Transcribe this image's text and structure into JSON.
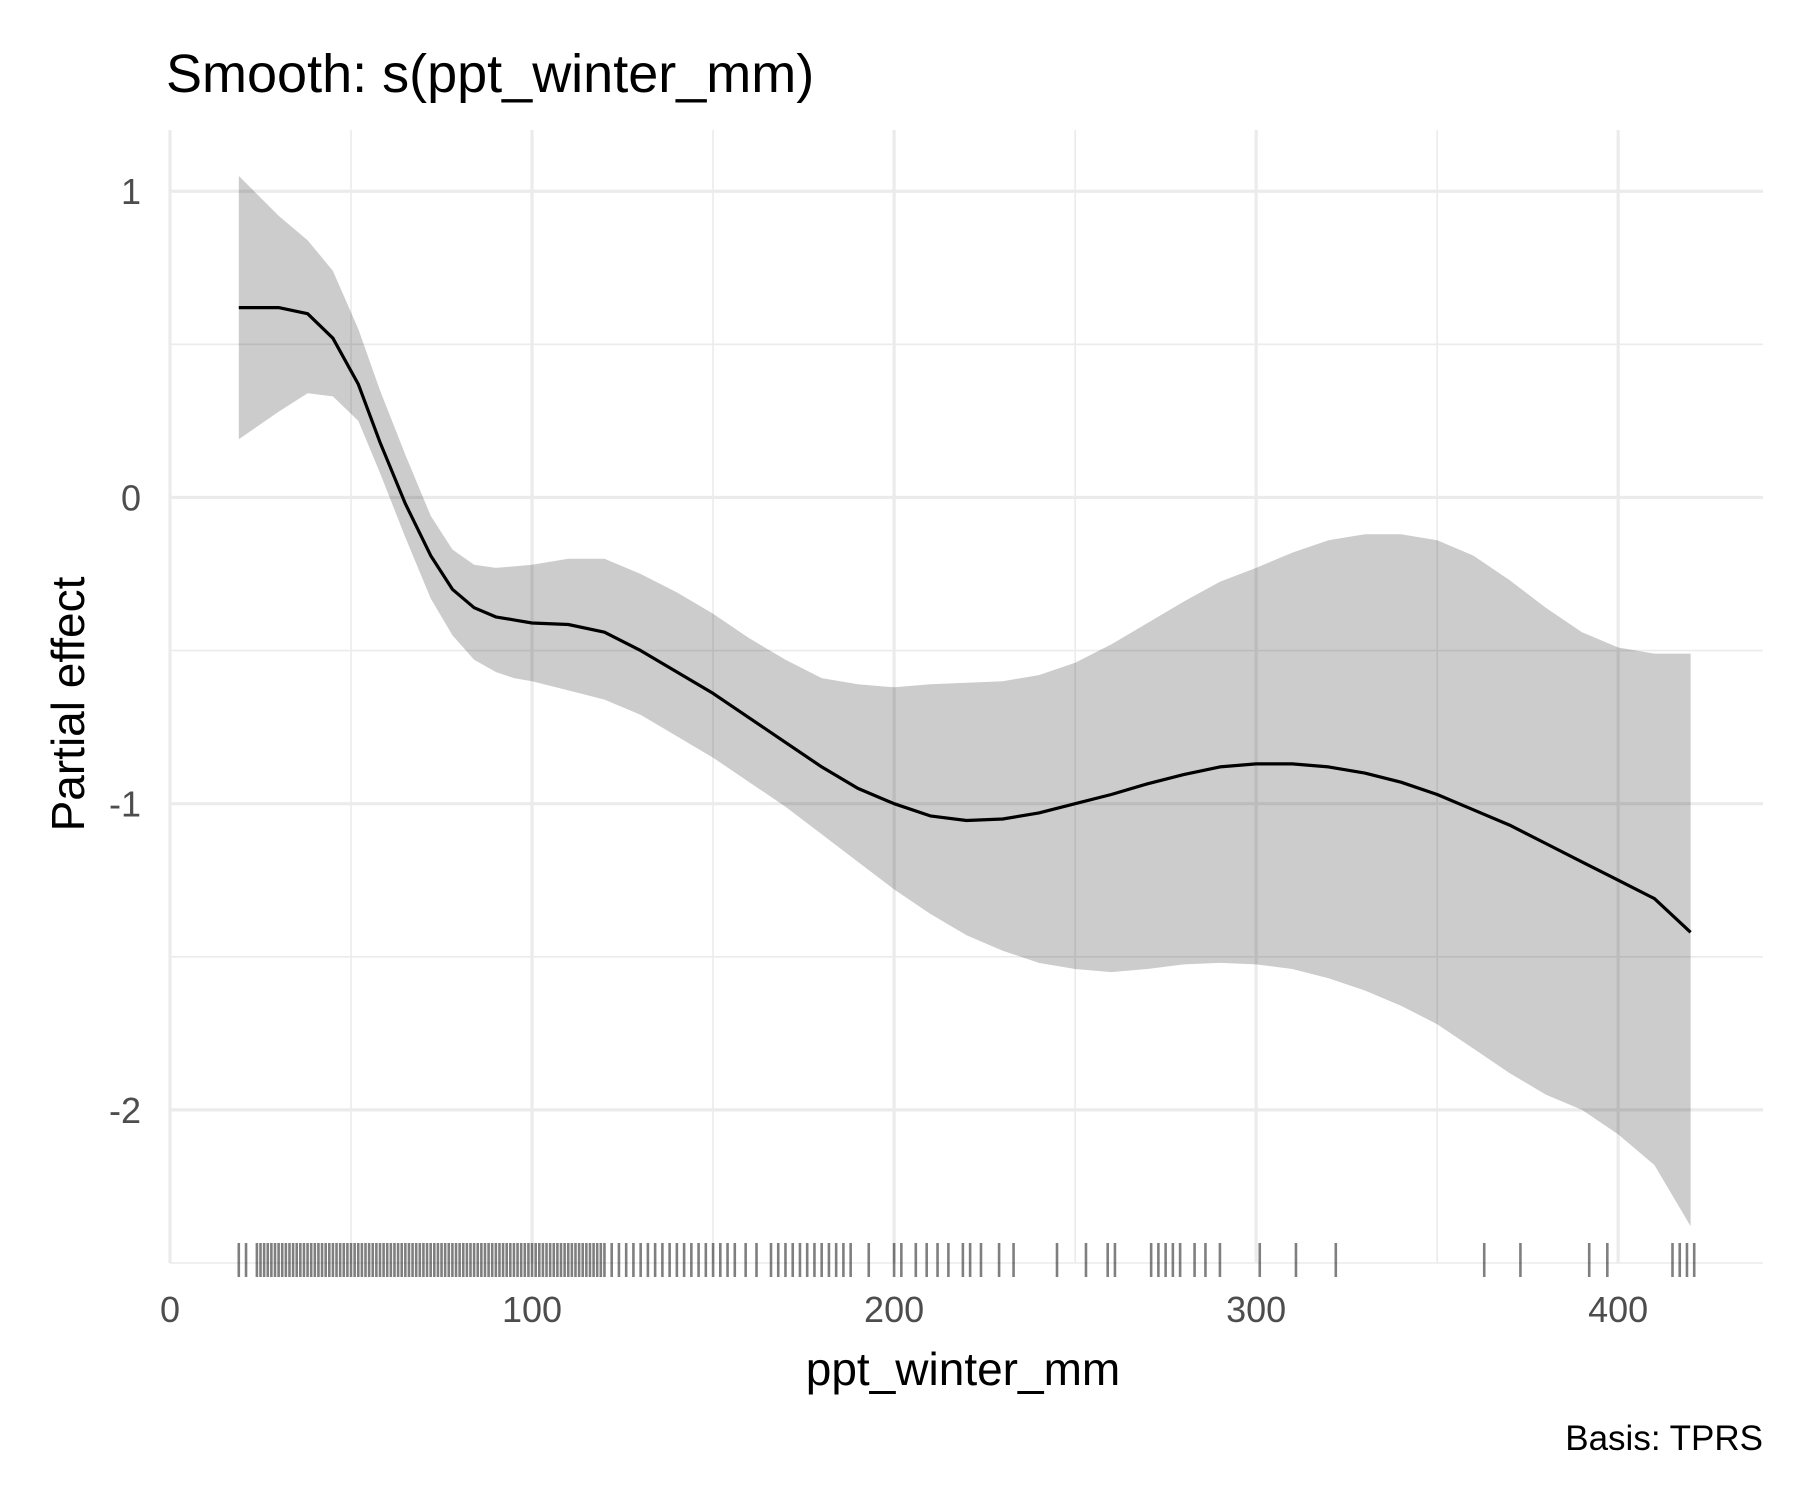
{
  "chart_data": {
    "type": "line",
    "title": "Smooth: s(ppt_winter_mm)",
    "xlabel": "ppt_winter_mm",
    "ylabel": "Partial effect",
    "caption": "Basis: TPRS",
    "xlim": [
      0,
      440
    ],
    "ylim": [
      -2.5,
      1.2
    ],
    "x_ticks": [
      0,
      100,
      200,
      300,
      400
    ],
    "x_tick_labels": [
      "0",
      "100",
      "200",
      "300",
      "400"
    ],
    "y_ticks": [
      -2,
      -1,
      0,
      1
    ],
    "y_tick_labels": [
      "-2",
      "-1",
      "0",
      "1"
    ],
    "grid": true,
    "series": [
      {
        "style": "line",
        "color": "#000000",
        "x": [
          19,
          30,
          38,
          45,
          52,
          58,
          65,
          72,
          78,
          84,
          90,
          95,
          100,
          110,
          120,
          130,
          140,
          150,
          160,
          170,
          180,
          190,
          200,
          210,
          220,
          230,
          240,
          250,
          260,
          270,
          280,
          290,
          300,
          310,
          320,
          330,
          340,
          350,
          360,
          370,
          380,
          390,
          400,
          410,
          420
        ],
        "fit": [
          0.62,
          0.62,
          0.6,
          0.52,
          0.37,
          0.18,
          -0.02,
          -0.19,
          -0.3,
          -0.36,
          -0.39,
          -0.4,
          -0.41,
          -0.415,
          -0.44,
          -0.5,
          -0.57,
          -0.64,
          -0.72,
          -0.8,
          -0.88,
          -0.95,
          -1.0,
          -1.04,
          -1.055,
          -1.05,
          -1.03,
          -1.0,
          -0.97,
          -0.935,
          -0.905,
          -0.88,
          -0.87,
          -0.87,
          -0.88,
          -0.9,
          -0.93,
          -0.97,
          -1.02,
          -1.07,
          -1.13,
          -1.19,
          -1.25,
          -1.31,
          -1.42
        ],
        "lower": [
          0.19,
          0.28,
          0.34,
          0.33,
          0.25,
          0.08,
          -0.13,
          -0.33,
          -0.45,
          -0.53,
          -0.57,
          -0.59,
          -0.6,
          -0.63,
          -0.66,
          -0.71,
          -0.78,
          -0.85,
          -0.93,
          -1.01,
          -1.1,
          -1.19,
          -1.28,
          -1.36,
          -1.43,
          -1.48,
          -1.52,
          -1.54,
          -1.55,
          -1.54,
          -1.525,
          -1.52,
          -1.525,
          -1.54,
          -1.57,
          -1.61,
          -1.66,
          -1.72,
          -1.8,
          -1.88,
          -1.95,
          -2.0,
          -2.08,
          -2.18,
          -2.38
        ],
        "upper": [
          1.05,
          0.92,
          0.84,
          0.74,
          0.55,
          0.35,
          0.14,
          -0.06,
          -0.17,
          -0.22,
          -0.23,
          -0.225,
          -0.22,
          -0.2,
          -0.2,
          -0.25,
          -0.31,
          -0.38,
          -0.46,
          -0.53,
          -0.59,
          -0.61,
          -0.62,
          -0.61,
          -0.605,
          -0.6,
          -0.58,
          -0.54,
          -0.48,
          -0.41,
          -0.34,
          -0.275,
          -0.23,
          -0.18,
          -0.14,
          -0.12,
          -0.12,
          -0.14,
          -0.19,
          -0.27,
          -0.36,
          -0.44,
          -0.49,
          -0.51,
          -0.51
        ]
      }
    ],
    "rug": {
      "color": "#000000",
      "values": [
        19,
        21,
        24,
        25,
        26,
        27,
        28,
        29,
        30,
        31,
        32,
        33,
        34,
        35,
        36,
        37,
        38,
        39,
        40,
        41,
        42,
        43,
        44,
        45,
        46,
        47,
        48,
        49,
        50,
        51,
        52,
        53,
        54,
        55,
        56,
        57,
        58,
        59,
        60,
        61,
        62,
        63,
        64,
        65,
        66,
        67,
        68,
        69,
        70,
        71,
        72,
        73,
        74,
        75,
        76,
        77,
        78,
        79,
        80,
        81,
        82,
        83,
        84,
        85,
        86,
        87,
        88,
        89,
        90,
        91,
        92,
        93,
        94,
        95,
        96,
        97,
        98,
        99,
        100,
        101,
        102,
        103,
        104,
        105,
        106,
        107,
        108,
        109,
        110,
        111,
        112,
        113,
        114,
        115,
        116,
        117,
        118,
        119,
        120,
        122,
        124,
        126,
        128,
        130,
        132,
        134,
        136,
        138,
        140,
        142,
        144,
        146,
        148,
        150,
        152,
        154,
        156,
        159,
        162,
        166,
        168,
        170,
        172,
        174,
        176,
        178,
        180,
        182,
        184,
        186,
        188,
        193,
        200,
        202,
        206,
        209,
        212,
        215,
        219,
        221,
        224,
        229,
        233,
        245,
        253,
        259,
        261,
        271,
        273,
        275,
        277,
        279,
        283,
        286,
        290,
        301,
        311,
        322,
        363,
        373,
        392,
        397,
        415,
        417,
        419,
        421
      ]
    }
  }
}
